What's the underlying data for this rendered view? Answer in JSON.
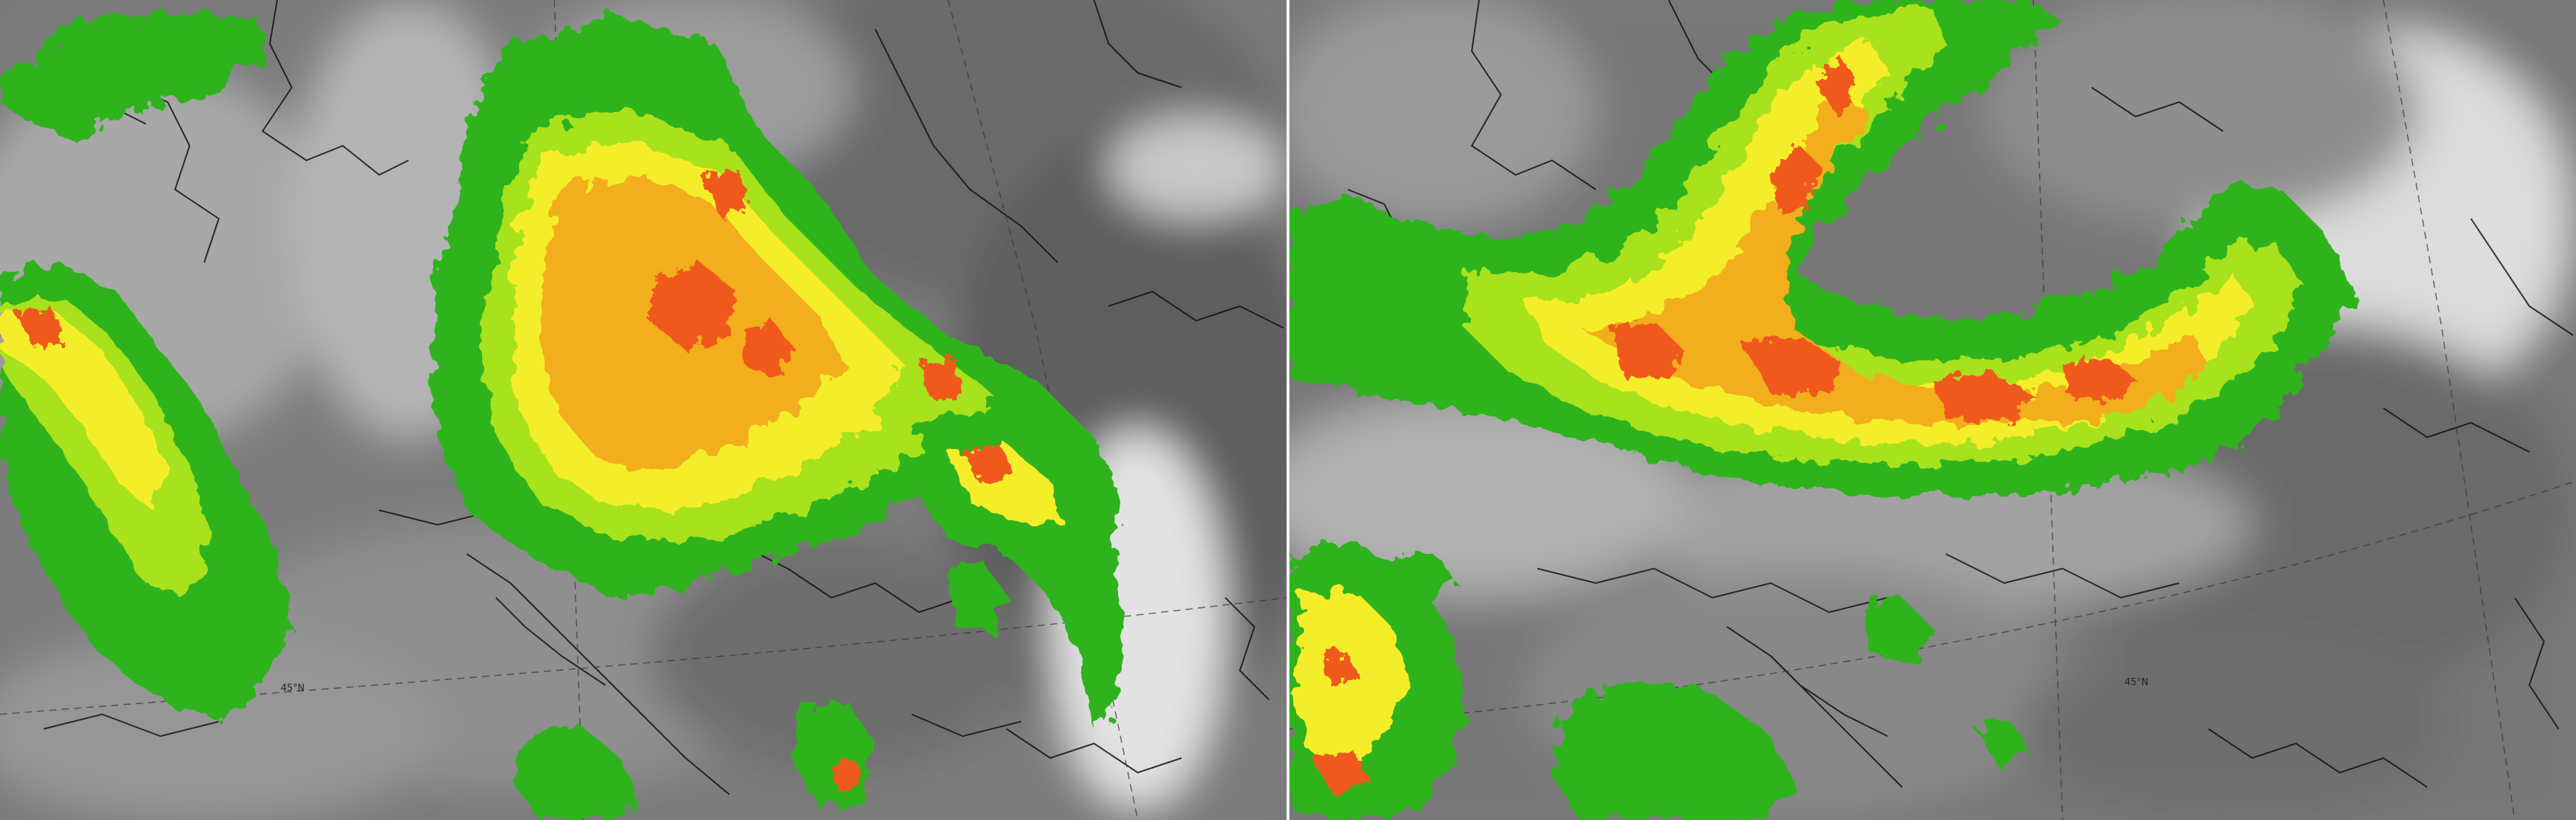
{
  "panels": [
    {
      "id": "left",
      "latitude_label": "45°N",
      "imagery": "grayscale-infrared-satellite",
      "overlay": "precipitation-radar"
    },
    {
      "id": "right",
      "latitude_label": "45°N",
      "imagery": "grayscale-infrared-satellite",
      "overlay": "precipitation-radar"
    }
  ],
  "palette": {
    "light": "#2db31e",
    "moderate": "#a8e21a",
    "heavy": "#f4ee2a",
    "very-heavy": "#f2ae1b",
    "extreme": "#ef5a1e",
    "border": "#111111",
    "graticule": "#3a3a3a"
  }
}
